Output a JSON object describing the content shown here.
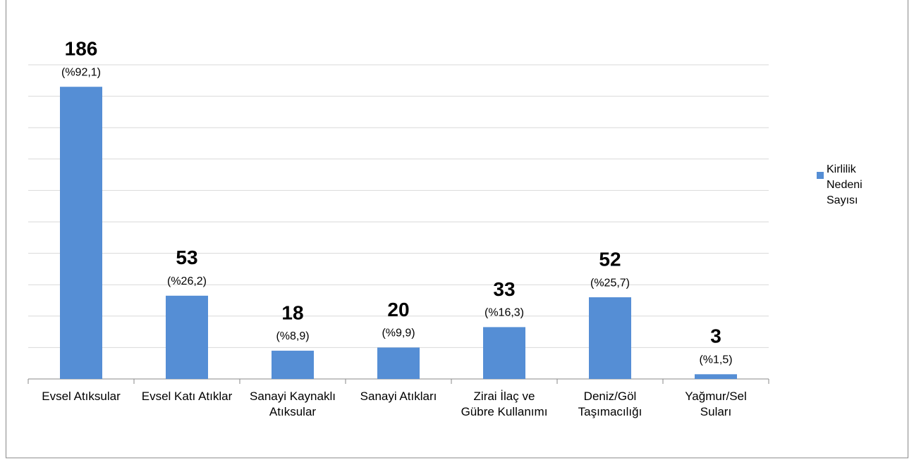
{
  "chart_data": {
    "type": "bar",
    "categories": [
      "Evsel Atıksular",
      "Evsel Katı Atıklar",
      "Sanayi Kaynaklı Atıksular",
      "Sanayi Atıkları",
      "Zirai İlaç ve Gübre Kullanımı",
      "Deniz/Göl Taşımacılığı",
      "Yağmur/Sel Suları"
    ],
    "series": [
      {
        "name": "Kirlilik Nedeni Sayısı",
        "color": "#558ed5",
        "values": [
          186,
          53,
          18,
          20,
          33,
          52,
          3
        ],
        "percentages": [
          92.1,
          26.2,
          8.9,
          9.9,
          16.3,
          25.7,
          1.5
        ],
        "percentage_labels": [
          "(%92,1)",
          "(%26,2)",
          "(%8,9)",
          "(%9,9)",
          "(%16,3)",
          "(%25,7)",
          "(%1,5)"
        ]
      }
    ],
    "ylim": [
      0,
      200
    ],
    "yticks": [
      0,
      20,
      40,
      60,
      80,
      100,
      120,
      140,
      160,
      180,
      200
    ],
    "grid": true,
    "legend": "right"
  }
}
